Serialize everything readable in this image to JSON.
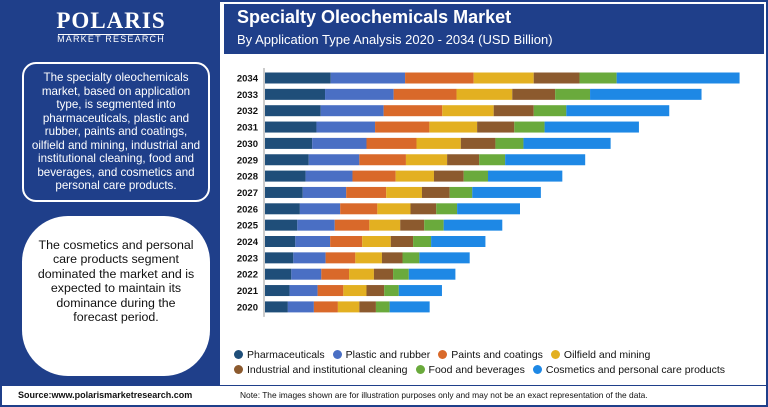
{
  "logo": {
    "name": "POLARIS",
    "tagline": "MARKET RESEARCH"
  },
  "summary": "The specialty oleochemicals market, based on application type, is segmented into pharmaceuticals, plastic and rubber, paints and coatings, oilfield and mining, industrial and institutional cleaning, food and beverages, and cosmetics and personal care products.",
  "highlight": "The cosmetics and personal care products segment dominated the market and is expected to maintain its dominance during the forecast period.",
  "footer": {
    "source": "Source:www.polarismarketresearch.com",
    "note": "Note: The images shown are for illustration purposes only and may not be an exact representation of the data."
  },
  "chart_data": {
    "type": "bar",
    "orientation": "horizontal",
    "stacked": true,
    "title": "Specialty Oleochemicals Market",
    "subtitle": "By Application Type Analysis 2020 - 2034 (USD Billion)",
    "categories": [
      "2034",
      "2033",
      "2032",
      "2031",
      "2030",
      "2029",
      "2028",
      "2027",
      "2026",
      "2025",
      "2024",
      "2023",
      "2022",
      "2021",
      "2020"
    ],
    "series": [
      {
        "name": "Pharmaceuticals",
        "color": "#1f4e79",
        "values": [
          2.3,
          2.1,
          1.95,
          1.8,
          1.65,
          1.53,
          1.42,
          1.32,
          1.22,
          1.13,
          1.06,
          0.99,
          0.92,
          0.86,
          0.8
        ]
      },
      {
        "name": "Plastic and rubber",
        "color": "#4a6fc4",
        "values": [
          2.6,
          2.4,
          2.2,
          2.05,
          1.9,
          1.77,
          1.64,
          1.52,
          1.41,
          1.31,
          1.22,
          1.13,
          1.05,
          0.98,
          0.91
        ]
      },
      {
        "name": "Paints and coatings",
        "color": "#d9692a",
        "values": [
          2.4,
          2.2,
          2.05,
          1.9,
          1.75,
          1.63,
          1.51,
          1.4,
          1.3,
          1.21,
          1.12,
          1.04,
          0.97,
          0.9,
          0.84
        ]
      },
      {
        "name": "Oilfield and mining",
        "color": "#e3b021",
        "values": [
          2.1,
          1.95,
          1.8,
          1.67,
          1.55,
          1.44,
          1.34,
          1.25,
          1.16,
          1.08,
          1.0,
          0.93,
          0.87,
          0.81,
          0.75
        ]
      },
      {
        "name": "Industrial and institutional cleaning",
        "color": "#8c5a2e",
        "values": [
          1.6,
          1.5,
          1.4,
          1.3,
          1.21,
          1.12,
          1.04,
          0.97,
          0.9,
          0.84,
          0.78,
          0.72,
          0.67,
          0.62,
          0.58
        ]
      },
      {
        "name": "Food and beverages",
        "color": "#6aaa3c",
        "values": [
          1.3,
          1.22,
          1.14,
          1.06,
          0.98,
          0.91,
          0.85,
          0.79,
          0.73,
          0.68,
          0.63,
          0.59,
          0.55,
          0.51,
          0.48
        ]
      },
      {
        "name": "Cosmetics and personal care products",
        "color": "#1e88e5",
        "values": [
          4.3,
          3.9,
          3.6,
          3.3,
          3.05,
          2.8,
          2.6,
          2.4,
          2.2,
          2.05,
          1.9,
          1.76,
          1.63,
          1.51,
          1.4
        ]
      }
    ],
    "xlim": [
      0,
      17
    ],
    "grid": false,
    "legend": "bottom"
  }
}
